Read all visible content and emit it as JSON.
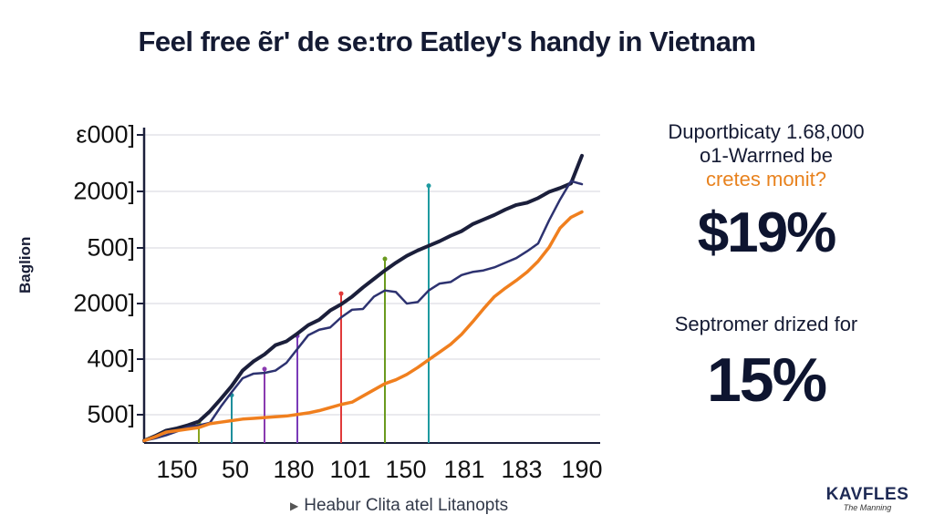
{
  "title": "Feel free ẽr' de se:tro Eatley's handy in Vietnam",
  "chart_data": {
    "type": "line",
    "ylabel": "Baglion",
    "ytick_labels": [
      "ε000]",
      "2000]",
      "500]",
      "2000]",
      "400]",
      "500]"
    ],
    "xtick_labels": [
      "150",
      "50",
      "180",
      "101",
      "150",
      "181",
      "183",
      "190"
    ],
    "x": [
      0,
      1,
      2,
      3,
      4,
      5,
      6,
      7,
      8,
      9,
      10,
      11,
      12,
      13,
      14,
      15,
      16,
      17,
      18,
      19,
      20,
      21,
      22,
      23,
      24,
      25,
      26,
      27,
      28,
      29,
      30,
      31,
      32,
      33,
      34,
      35,
      36,
      37,
      38,
      39,
      40
    ],
    "series": [
      {
        "color": "#1b1f3b",
        "values": [
          0.3,
          0.9,
          1.6,
          1.9,
          2.3,
          2.8,
          4.1,
          5.7,
          7.4,
          9.4,
          10.6,
          11.5,
          12.7,
          13.2,
          14.2,
          15.3,
          16.0,
          17.2,
          18.0,
          19.0,
          20.2,
          21.3,
          22.4,
          23.4,
          24.3,
          25.0,
          25.6,
          26.2,
          26.9,
          27.5,
          28.4,
          29.0,
          29.6,
          30.3,
          30.9,
          31.2,
          31.8,
          32.6,
          33.1,
          33.7,
          37.3
        ]
      },
      {
        "color": "#2d3270",
        "values": [
          0.3,
          0.6,
          1.0,
          1.5,
          2.1,
          2.3,
          2.6,
          4.7,
          6.6,
          8.4,
          9.0,
          9.1,
          9.4,
          10.4,
          12.2,
          14.0,
          14.7,
          15.0,
          16.3,
          17.3,
          17.4,
          19.0,
          19.8,
          19.6,
          18.1,
          18.3,
          19.8,
          20.7,
          20.9,
          21.8,
          22.2,
          22.4,
          22.8,
          23.4,
          24.0,
          24.9,
          25.9,
          28.9,
          31.6,
          34.0,
          33.6
        ]
      },
      {
        "color": "#f07f1e",
        "values": [
          0.3,
          0.8,
          1.4,
          1.6,
          1.8,
          2.0,
          2.5,
          2.7,
          2.9,
          3.1,
          3.2,
          3.3,
          3.4,
          3.5,
          3.7,
          3.9,
          4.2,
          4.6,
          5.0,
          5.3,
          6.1,
          6.9,
          7.7,
          8.2,
          8.9,
          9.8,
          10.8,
          11.8,
          12.8,
          14.1,
          15.7,
          17.4,
          19.0,
          20.1,
          21.1,
          22.2,
          23.6,
          25.4,
          27.9,
          29.3,
          30.0
        ]
      }
    ],
    "drop_lines": [
      {
        "x": 5,
        "value": 2.6,
        "color": "#8aa51e"
      },
      {
        "x": 8,
        "value": 6.2,
        "color": "#1e8f9c"
      },
      {
        "x": 11,
        "value": 9.6,
        "color": "#8a3ab0"
      },
      {
        "x": 14,
        "value": 13.9,
        "color": "#7a3bb8"
      },
      {
        "x": 18,
        "value": 19.4,
        "color": "#e03a3a"
      },
      {
        "x": 22,
        "value": 23.9,
        "color": "#6a9a1e"
      },
      {
        "x": 26,
        "value": 33.4,
        "color": "#1e9aa0"
      }
    ],
    "ylim": [
      0,
      40
    ],
    "grid": true
  },
  "legend": {
    "text": "Heabur Clita atel Litanopts"
  },
  "panel": {
    "line1": "Duportbicaty 1.68,000",
    "line2": "o1-Warrned be",
    "line3": "cretes monit?",
    "big_value_1": "$19%",
    "sub_2": "Septromer drized for",
    "big_value_2": "15%"
  },
  "logo": {
    "mark": "KAVFLES",
    "sub": "The Manning"
  },
  "colors": {
    "text": "#141a33",
    "accent": "#e8821e"
  }
}
